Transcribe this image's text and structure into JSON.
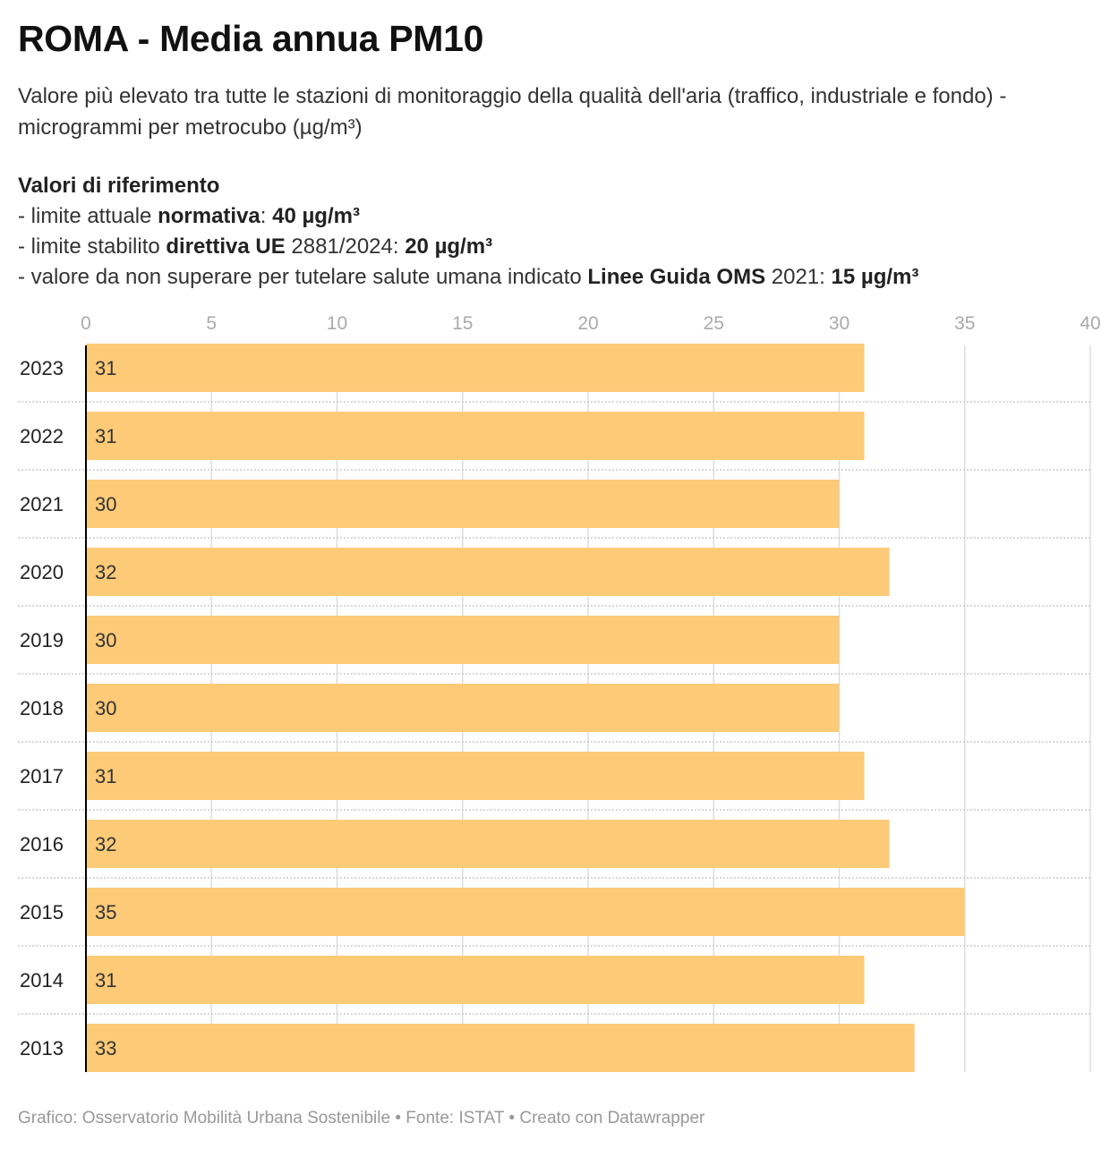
{
  "title": "ROMA - Media annua PM10",
  "subtitle": "Valore più elevato tra tutte le stazioni di monitoraggio della qualità dell'aria (traffico, industriale e fondo) - microgrammi per metrocubo (µg/m³)",
  "references": {
    "heading": "Valori di riferimento",
    "line1": {
      "prefix": "- limite attuale ",
      "bold1": "normativa",
      "mid": ": ",
      "bold2": "40 µg/m³"
    },
    "line2": {
      "prefix": "- limite stabilito ",
      "bold1": "direttiva UE",
      "mid": " 2881/2024: ",
      "bold2": "20 µg/m³"
    },
    "line3": {
      "prefix": "- valore da non superare per tutelare salute umana indicato ",
      "bold1": "Linee Guida OMS",
      "mid": " 2021: ",
      "bold2": "15 µg/m³"
    }
  },
  "chart_data": {
    "type": "bar",
    "orientation": "horizontal",
    "categories": [
      "2023",
      "2022",
      "2021",
      "2020",
      "2019",
      "2018",
      "2017",
      "2016",
      "2015",
      "2014",
      "2013"
    ],
    "values": [
      31,
      31,
      30,
      32,
      30,
      30,
      31,
      32,
      35,
      31,
      33
    ],
    "x_ticks": [
      0,
      5,
      10,
      15,
      20,
      25,
      30,
      35,
      40
    ],
    "xlim": [
      0,
      40
    ],
    "grid": true,
    "value_labels": true
  },
  "colors": {
    "bar": "#fdca78",
    "grid": "#dddddd",
    "axis": "#000000",
    "tick_label": "#aaaaaa"
  },
  "footer": {
    "credit": "Grafico: Osservatorio Mobilità Urbana Sostenibile",
    "separator": " • ",
    "source": "Fonte: ISTAT",
    "tool": "Creato con Datawrapper"
  }
}
